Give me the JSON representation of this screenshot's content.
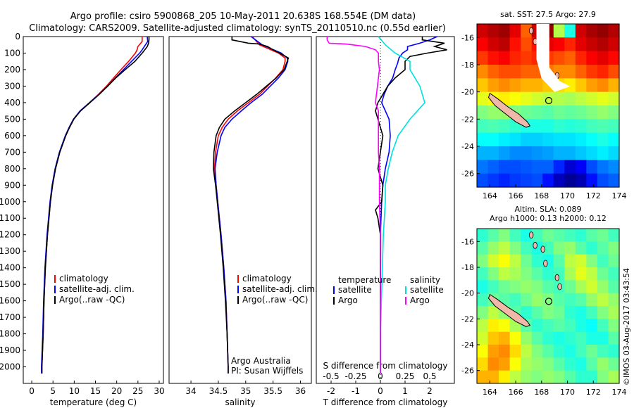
{
  "header": {
    "line1": "Argo profile: csiro 5900868_205 10-May-2011 20.638S 168.554E (DM data)",
    "line2": "Climatology: CARS2009. Satellite-adjusted climatology: synTS_20110510.nc (0.55d earlier)"
  },
  "colors": {
    "climatology": "#ff0000",
    "satellite": "#0000ff",
    "argo": "#000000",
    "s_satellite": "#00e0e0",
    "s_argo": "#ff00ff"
  },
  "chart_data": [
    {
      "id": "temperature",
      "type": "line",
      "xlabel": "temperature (deg C)",
      "ylabel": "",
      "xlim": [
        -2,
        31
      ],
      "ylim": [
        2100,
        0
      ],
      "xticks": [
        0,
        5,
        10,
        15,
        20,
        25,
        30
      ],
      "yticks": [
        0,
        100,
        200,
        300,
        400,
        500,
        600,
        700,
        800,
        900,
        1000,
        1100,
        1200,
        1300,
        1400,
        1500,
        1600,
        1700,
        1800,
        1900,
        2000
      ],
      "legend": [
        "climatology",
        "satellite-adj. clim.",
        "Argo(..raw -QC)"
      ],
      "series": [
        {
          "name": "climatology",
          "color": "#ff0000",
          "depth": [
            0,
            30,
            60,
            80,
            100,
            150,
            200,
            250,
            300,
            350,
            400,
            450,
            500,
            550,
            600,
            650,
            700,
            800,
            900,
            1000,
            1200,
            1400,
            1600,
            1800,
            2000,
            2040
          ],
          "values": [
            26.0,
            26.0,
            25.0,
            24.8,
            24.4,
            22.8,
            21.0,
            19.3,
            17.6,
            15.7,
            13.6,
            11.4,
            9.9,
            8.9,
            8.0,
            7.3,
            6.6,
            5.6,
            4.9,
            4.4,
            3.7,
            3.2,
            2.9,
            2.7,
            2.4,
            2.4
          ]
        },
        {
          "name": "satellite-adj. clim.",
          "color": "#0000ff",
          "depth": [
            0,
            30,
            60,
            80,
            100,
            150,
            200,
            250,
            300,
            350,
            400,
            450,
            500,
            550,
            600,
            650,
            700,
            800,
            900,
            1000,
            1200,
            1400,
            1600,
            1800,
            2000,
            2040
          ],
          "values": [
            27.2,
            27.3,
            26.5,
            26.0,
            25.4,
            23.5,
            21.6,
            19.7,
            17.8,
            15.8,
            13.6,
            11.4,
            9.8,
            8.8,
            7.9,
            7.2,
            6.5,
            5.5,
            4.8,
            4.3,
            3.6,
            3.1,
            2.8,
            2.6,
            2.3,
            2.3
          ]
        },
        {
          "name": "Argo(..raw -QC)",
          "color": "#000000",
          "depth": [
            0,
            20,
            40,
            60,
            80,
            100,
            150,
            200,
            250,
            300,
            350,
            400,
            450,
            500,
            550,
            600,
            650,
            700,
            800,
            900,
            1000,
            1200,
            1400,
            1600,
            1800,
            2000,
            2040
          ],
          "values": [
            27.6,
            27.6,
            27.5,
            27.2,
            26.6,
            26.0,
            24.3,
            22.0,
            19.8,
            17.9,
            15.9,
            13.7,
            11.5,
            9.9,
            8.9,
            8.0,
            7.3,
            6.6,
            5.6,
            4.9,
            4.4,
            3.7,
            3.2,
            2.9,
            2.7,
            2.4,
            2.4
          ]
        }
      ]
    },
    {
      "id": "salinity",
      "type": "line",
      "xlabel": "salinity",
      "ylabel": "",
      "xlim": [
        33.6,
        36.2
      ],
      "ylim": [
        2100,
        0
      ],
      "xticks": [
        34,
        34.5,
        35,
        35.5,
        36
      ],
      "legend": [
        "climatology",
        "satellite-adj. clim.",
        "Argo(..raw -QC)"
      ],
      "annotation": [
        "Argo Australia",
        "PI: Susan Wijffels"
      ],
      "series": [
        {
          "name": "climatology",
          "color": "#ff0000",
          "depth": [
            0,
            50,
            100,
            130,
            150,
            200,
            250,
            300,
            350,
            400,
            450,
            500,
            550,
            600,
            700,
            800,
            900,
            1000,
            1200,
            1400,
            1600,
            1800,
            2000,
            2040
          ],
          "values": [
            35.12,
            35.25,
            35.6,
            35.72,
            35.72,
            35.68,
            35.55,
            35.4,
            35.25,
            35.05,
            34.85,
            34.68,
            34.57,
            34.5,
            34.45,
            34.43,
            34.46,
            34.49,
            34.55,
            34.6,
            34.64,
            34.66,
            34.68,
            34.68
          ]
        },
        {
          "name": "satellite-adj. clim.",
          "color": "#0000ff",
          "depth": [
            0,
            50,
            100,
            130,
            150,
            200,
            250,
            300,
            350,
            400,
            450,
            500,
            550,
            600,
            700,
            800,
            900,
            1000,
            1200,
            1400,
            1600,
            1800,
            2000,
            2040
          ],
          "values": [
            35.1,
            35.3,
            35.65,
            35.76,
            35.77,
            35.72,
            35.6,
            35.45,
            35.3,
            35.1,
            34.92,
            34.75,
            34.62,
            34.55,
            34.48,
            34.44,
            34.46,
            34.49,
            34.55,
            34.6,
            34.64,
            34.66,
            34.68,
            34.68
          ]
        },
        {
          "name": "Argo(..raw -QC)",
          "color": "#000000",
          "depth": [
            0,
            20,
            40,
            45,
            60,
            80,
            100,
            130,
            150,
            200,
            250,
            300,
            350,
            400,
            450,
            500,
            550,
            600,
            700,
            800,
            900,
            1000,
            1200,
            1400,
            1600,
            1800,
            2000,
            2040
          ],
          "values": [
            34.75,
            34.75,
            35.05,
            35.25,
            35.4,
            35.5,
            35.62,
            35.78,
            35.76,
            35.7,
            35.56,
            35.38,
            35.2,
            35.0,
            34.8,
            34.62,
            34.52,
            34.46,
            34.42,
            34.41,
            34.45,
            34.48,
            34.54,
            34.59,
            34.63,
            34.66,
            34.68,
            34.68
          ]
        }
      ]
    },
    {
      "id": "difference",
      "type": "line",
      "xlabel": "T difference from climatology",
      "xlabel_top": "S difference from climatology",
      "xlim": [
        -2.6,
        3.0
      ],
      "ylim": [
        2100,
        0
      ],
      "xticks": [
        -2,
        -1,
        0,
        1,
        2
      ],
      "xticks_top": [
        -0.5,
        -0.25,
        0,
        0.25,
        0.5
      ],
      "legend_left_title": "temperature",
      "legend_right_title": "salinity",
      "legend_left": [
        "satellite",
        "Argo"
      ],
      "legend_right": [
        "satellite",
        "Argo"
      ],
      "series": [
        {
          "name": "temperature satellite",
          "color": "#0000ff",
          "depth": [
            0,
            20,
            40,
            60,
            80,
            100,
            130,
            160,
            200,
            250,
            300,
            350,
            400,
            450,
            500,
            600,
            700,
            800,
            900,
            1000,
            1200,
            1400,
            1600,
            1800,
            2000,
            2040
          ],
          "values": [
            2.3,
            2.0,
            1.6,
            1.1,
            1.1,
            0.9,
            0.75,
            0.7,
            0.6,
            0.5,
            0.3,
            0.15,
            0.05,
            0.2,
            0.35,
            0.4,
            0.35,
            0.2,
            0.1,
            0.05,
            0.0,
            0.0,
            0.0,
            0.0,
            0.0,
            0.0
          ]
        },
        {
          "name": "temperature Argo",
          "color": "#000000",
          "depth": [
            0,
            20,
            40,
            60,
            80,
            100,
            120,
            150,
            200,
            250,
            300,
            350,
            400,
            450,
            500,
            600,
            700,
            800,
            900,
            1000,
            1050,
            1100,
            1200,
            1400,
            1600,
            1800,
            2000,
            2040
          ],
          "values": [
            1.7,
            1.7,
            2.6,
            2.2,
            2.7,
            1.9,
            1.2,
            1.0,
            1.0,
            0.6,
            0.3,
            0.1,
            -0.1,
            -0.2,
            -0.1,
            0.1,
            0.0,
            -0.1,
            0.1,
            0.05,
            -0.2,
            -0.1,
            0.0,
            0.0,
            0.0,
            0.0,
            0.0,
            0.0
          ]
        },
        {
          "name": "salinity satellite",
          "color": "#00e0e0",
          "depth": [
            0,
            50,
            100,
            150,
            200,
            250,
            300,
            400,
            500,
            600,
            700,
            800,
            900,
            1000,
            1200,
            1400,
            1600,
            1800,
            2000,
            2040
          ],
          "values": [
            -0.02,
            0.05,
            0.15,
            0.3,
            0.3,
            0.35,
            0.4,
            0.45,
            0.3,
            0.18,
            0.12,
            0.08,
            0.05,
            0.05,
            0.03,
            0.02,
            0.01,
            0.0,
            0.0,
            0.0
          ]
        },
        {
          "name": "salinity Argo",
          "color": "#ff00ff",
          "depth": [
            0,
            20,
            40,
            45,
            60,
            80,
            100,
            150,
            200,
            300,
            400,
            450,
            500,
            600,
            700,
            800,
            900,
            1000,
            1200,
            1400,
            1600,
            1800,
            2000,
            2040
          ],
          "values": [
            -0.54,
            -0.54,
            -0.52,
            -0.35,
            -0.15,
            -0.05,
            -0.02,
            -0.02,
            -0.01,
            -0.03,
            -0.05,
            -0.02,
            -0.02,
            -0.02,
            -0.02,
            -0.01,
            -0.01,
            -0.01,
            0.0,
            0.0,
            0.0,
            0.0,
            0.0,
            0.0
          ]
        }
      ]
    },
    {
      "id": "sst-map",
      "type": "heatmap",
      "title": "sat. SST: 27.5  Argo: 27.9",
      "xlim": [
        163,
        174
      ],
      "ylim": [
        -27,
        -15
      ],
      "xticks": [
        164,
        166,
        168,
        170,
        172,
        174
      ],
      "yticks": [
        -16,
        -18,
        -20,
        -22,
        -24,
        -26
      ],
      "argo_position": [
        168.554,
        -20.638
      ],
      "cells": [
        [
          0.92,
          0.95,
          0.97,
          0.9,
          0.78,
          0.92,
          0.98,
          0.55,
          0.4,
          0.92,
          0.96,
          0.98,
          0.95
        ],
        [
          0.88,
          0.92,
          0.94,
          0.86,
          0.8,
          0.86,
          0.9,
          0.88,
          0.84,
          0.9,
          0.93,
          0.95,
          0.92
        ],
        [
          0.82,
          0.86,
          0.88,
          0.84,
          0.82,
          0.84,
          0.82,
          0.8,
          0.78,
          0.84,
          0.88,
          0.9,
          0.87
        ],
        [
          0.74,
          0.78,
          0.8,
          0.8,
          0.78,
          0.78,
          0.76,
          0.74,
          0.74,
          0.78,
          0.82,
          0.84,
          0.8
        ],
        [
          0.68,
          0.72,
          0.74,
          0.72,
          0.7,
          0.7,
          0.68,
          0.66,
          0.64,
          0.68,
          0.72,
          0.74,
          0.7
        ],
        [
          0.6,
          0.62,
          0.64,
          0.62,
          0.6,
          0.58,
          0.56,
          0.55,
          0.54,
          0.56,
          0.58,
          0.6,
          0.58
        ],
        [
          0.5,
          0.52,
          0.52,
          0.5,
          0.48,
          0.47,
          0.46,
          0.48,
          0.47,
          0.48,
          0.5,
          0.52,
          0.5
        ],
        [
          0.44,
          0.45,
          0.44,
          0.42,
          0.4,
          0.4,
          0.4,
          0.42,
          0.41,
          0.42,
          0.44,
          0.45,
          0.44
        ],
        [
          0.38,
          0.38,
          0.36,
          0.35,
          0.33,
          0.33,
          0.34,
          0.35,
          0.35,
          0.36,
          0.38,
          0.4,
          0.38
        ],
        [
          0.3,
          0.3,
          0.28,
          0.26,
          0.26,
          0.27,
          0.28,
          0.3,
          0.3,
          0.32,
          0.34,
          0.36,
          0.34
        ],
        [
          0.24,
          0.22,
          0.2,
          0.2,
          0.21,
          0.22,
          0.22,
          0.16,
          0.08,
          0.12,
          0.2,
          0.24,
          0.26
        ],
        [
          0.2,
          0.18,
          0.16,
          0.18,
          0.19,
          0.2,
          0.14,
          0.06,
          0.02,
          0.05,
          0.14,
          0.2,
          0.22
        ]
      ]
    },
    {
      "id": "sla-map",
      "type": "heatmap",
      "title": "Altim. SLA: 0.089",
      "subtitle": "Argo h1000: 0.13 h2000: 0.12",
      "xlim": [
        163,
        174
      ],
      "ylim": [
        -27,
        -15
      ],
      "xticks": [
        164,
        166,
        168,
        170,
        172,
        174
      ],
      "yticks": [
        -16,
        -18,
        -20,
        -22,
        -24,
        -26
      ],
      "argo_position": [
        168.554,
        -20.638
      ],
      "cells": [
        [
          0.42,
          0.46,
          0.5,
          0.44,
          0.4,
          0.44,
          0.48,
          0.46,
          0.44,
          0.42,
          0.46,
          0.48,
          0.44
        ],
        [
          0.46,
          0.52,
          0.56,
          0.5,
          0.44,
          0.4,
          0.44,
          0.5,
          0.52,
          0.46,
          0.42,
          0.46,
          0.5
        ],
        [
          0.5,
          0.58,
          0.62,
          0.56,
          0.48,
          0.42,
          0.4,
          0.46,
          0.56,
          0.58,
          0.5,
          0.44,
          0.48
        ],
        [
          0.44,
          0.5,
          0.56,
          0.54,
          0.5,
          0.46,
          0.42,
          0.44,
          0.54,
          0.6,
          0.56,
          0.48,
          0.44
        ],
        [
          0.4,
          0.44,
          0.48,
          0.5,
          0.52,
          0.5,
          0.46,
          0.44,
          0.48,
          0.54,
          0.58,
          0.52,
          0.46
        ],
        [
          0.44,
          0.48,
          0.46,
          0.44,
          0.48,
          0.52,
          0.5,
          0.46,
          0.44,
          0.46,
          0.52,
          0.56,
          0.52
        ],
        [
          0.5,
          0.56,
          0.52,
          0.46,
          0.42,
          0.46,
          0.5,
          0.48,
          0.42,
          0.4,
          0.44,
          0.5,
          0.54
        ],
        [
          0.56,
          0.64,
          0.62,
          0.54,
          0.46,
          0.42,
          0.44,
          0.46,
          0.44,
          0.4,
          0.38,
          0.44,
          0.5
        ],
        [
          0.58,
          0.68,
          0.7,
          0.62,
          0.52,
          0.46,
          0.42,
          0.4,
          0.42,
          0.44,
          0.4,
          0.4,
          0.46
        ],
        [
          0.62,
          0.72,
          0.74,
          0.66,
          0.56,
          0.5,
          0.46,
          0.42,
          0.4,
          0.44,
          0.48,
          0.44,
          0.42
        ],
        [
          0.66,
          0.74,
          0.72,
          0.62,
          0.54,
          0.52,
          0.5,
          0.46,
          0.42,
          0.4,
          0.46,
          0.52,
          0.48
        ],
        [
          0.7,
          0.7,
          0.64,
          0.56,
          0.52,
          0.5,
          0.52,
          0.5,
          0.46,
          0.42,
          0.42,
          0.5,
          0.54
        ]
      ]
    }
  ],
  "timestamp": "©IMOS 03-Aug-2017 03:43:54"
}
